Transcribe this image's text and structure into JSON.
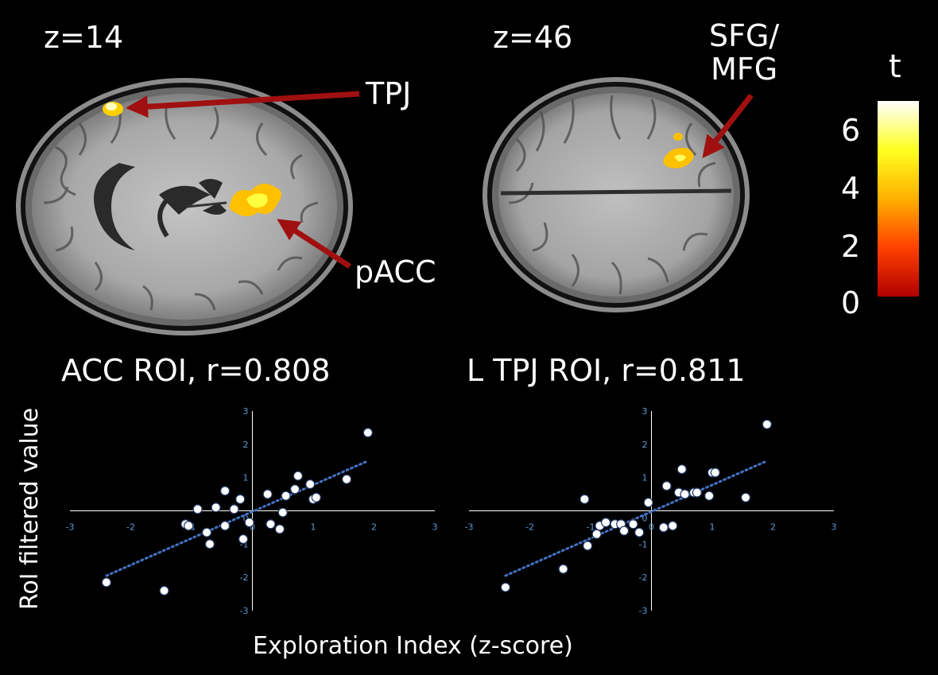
{
  "slices": [
    {
      "label": "z=14"
    },
    {
      "label": "z=46"
    }
  ],
  "regions": {
    "tpj": "TPJ",
    "pacc": "pACC",
    "sfg_line1": "SFG/",
    "sfg_line2": "MFG"
  },
  "colorbar": {
    "title": "t",
    "ticks": [
      "6",
      "4",
      "2",
      "0"
    ],
    "colors": [
      "#ffffff",
      "#ffff20",
      "#ffb000",
      "#ff4000",
      "#b00000"
    ]
  },
  "axes": {
    "ylabel": "RoI filtered value",
    "xlabel": "Exploration Index (z-score)"
  },
  "chart_data": [
    {
      "type": "scatter",
      "title": "ACC ROI, r=0.808",
      "xlim": [
        -3,
        3
      ],
      "ylim": [
        -3,
        3
      ],
      "xticks": [
        "-3",
        "-2",
        "-1",
        "0",
        "1",
        "2",
        "3"
      ],
      "yticks": [
        "3",
        "2",
        "1",
        "0",
        "-1",
        "-2",
        "-3"
      ],
      "x": [
        -2.4,
        -1.45,
        -1.1,
        -1.05,
        -0.9,
        -0.75,
        -0.7,
        -0.6,
        -0.45,
        -0.45,
        -0.3,
        -0.2,
        -0.15,
        -0.05,
        0.25,
        0.3,
        0.45,
        0.5,
        0.55,
        0.7,
        0.75,
        0.95,
        1.0,
        1.05,
        1.55,
        1.9
      ],
      "y": [
        -2.15,
        -2.4,
        -0.4,
        -0.45,
        0.05,
        -0.65,
        -1.0,
        0.1,
        0.6,
        -0.45,
        0.05,
        0.35,
        -0.85,
        -0.35,
        0.5,
        -0.4,
        -0.55,
        -0.05,
        0.45,
        0.65,
        1.05,
        0.8,
        0.35,
        0.4,
        0.95,
        2.35
      ],
      "trend": {
        "x": [
          -2.4,
          1.9
        ],
        "y": [
          -1.95,
          1.5
        ]
      },
      "point_color": "#ffffff",
      "trend_color": "#4472c4",
      "axis_color": "#ffffff",
      "tick_color": "#5b9bd5"
    },
    {
      "type": "scatter",
      "title": "L TPJ ROI, r=0.811",
      "xlim": [
        -3,
        3
      ],
      "ylim": [
        -3,
        3
      ],
      "xticks": [
        "-3",
        "-2",
        "-1",
        "0",
        "1",
        "2",
        "3"
      ],
      "yticks": [
        "3",
        "2",
        "1",
        "0",
        "-1",
        "-2",
        "-3"
      ],
      "x": [
        -2.4,
        -1.45,
        -1.1,
        -1.05,
        -0.9,
        -0.85,
        -0.75,
        -0.6,
        -0.5,
        -0.45,
        -0.3,
        -0.2,
        -0.05,
        0.2,
        0.25,
        0.35,
        0.45,
        0.5,
        0.55,
        0.7,
        0.75,
        0.95,
        1.0,
        1.05,
        1.55,
        1.9
      ],
      "y": [
        -2.3,
        -1.75,
        0.35,
        -1.05,
        -0.7,
        -0.45,
        -0.35,
        -0.4,
        -0.4,
        -0.6,
        -0.4,
        -0.65,
        0.25,
        -0.5,
        0.75,
        -0.45,
        0.55,
        1.25,
        0.5,
        0.55,
        0.55,
        0.45,
        1.15,
        1.15,
        0.4,
        2.6
      ],
      "trend": {
        "x": [
          -2.4,
          1.9
        ],
        "y": [
          -1.95,
          1.5
        ]
      },
      "point_color": "#ffffff",
      "trend_color": "#4472c4",
      "axis_color": "#ffffff",
      "tick_color": "#5b9bd5"
    }
  ]
}
